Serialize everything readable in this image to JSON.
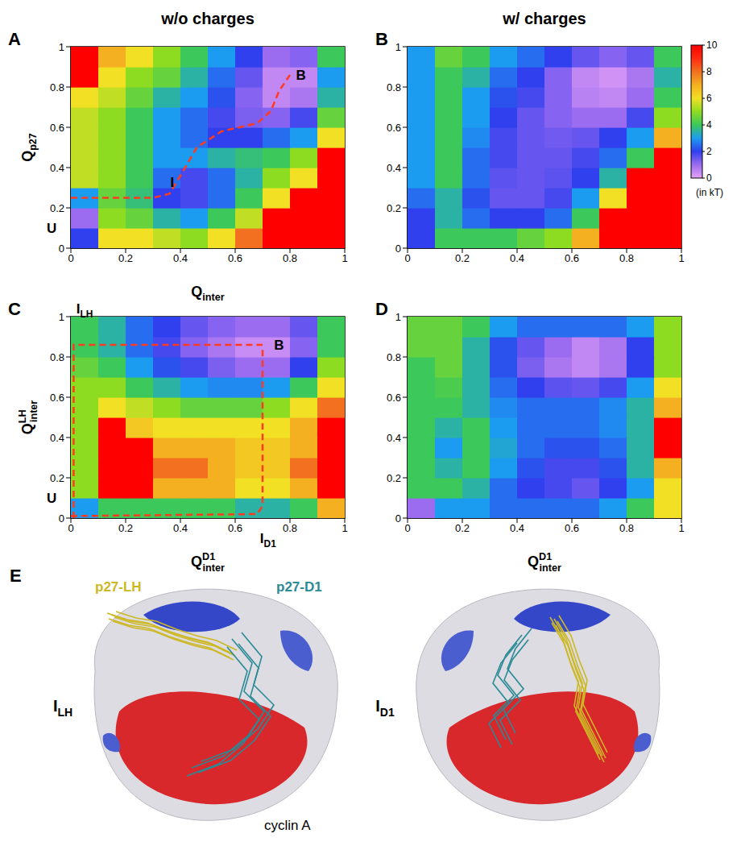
{
  "column_titles": [
    "w/o charges",
    "w/ charges"
  ],
  "colorbar": {
    "range": [
      0,
      10
    ],
    "ticks": [
      0,
      2,
      4,
      6,
      8,
      10
    ],
    "label": "(in kT)",
    "colors": [
      "#e6a3f7",
      "#9b6cf0",
      "#3040ee",
      "#1c9cf0",
      "#3cc85a",
      "#8edc22",
      "#f2e024",
      "#f4b020",
      "#f27020",
      "#ff2c10",
      "#ff0000"
    ]
  },
  "chart_data": [
    {
      "type": "heatmap",
      "title": "A",
      "ylabel": {
        "text": "Q",
        "sub": "p27"
      },
      "xlabel": {
        "text": "Q",
        "sub": "inter"
      },
      "xlim": [
        0,
        1
      ],
      "ylim": [
        0,
        1
      ],
      "xticks": [
        0,
        0.2,
        0.4,
        0.6,
        0.8,
        1
      ],
      "yticks": [
        0,
        0.2,
        0.4,
        0.6,
        0.8,
        1
      ],
      "x": [
        0.05,
        0.15,
        0.25,
        0.35,
        0.45,
        0.55,
        0.65,
        0.75,
        0.85,
        0.95
      ],
      "y": [
        0.05,
        0.15,
        0.25,
        0.35,
        0.45,
        0.55,
        0.65,
        0.75,
        0.85,
        0.95
      ],
      "z": [
        [
          2,
          6,
          6,
          5.5,
          5,
          6,
          8,
          10,
          10,
          10
        ],
        [
          1,
          5,
          4.5,
          3.5,
          3,
          4,
          5.5,
          10,
          10,
          10
        ],
        [
          3,
          4.5,
          3.8,
          2,
          1.8,
          2.5,
          4,
          6,
          10,
          10
        ],
        [
          5.5,
          5,
          4,
          2.5,
          1.8,
          2.5,
          3.5,
          5,
          6,
          10
        ],
        [
          5.5,
          5,
          4,
          3,
          3,
          3.5,
          3.8,
          4,
          5,
          10
        ],
        [
          5.5,
          5,
          4,
          3,
          2.5,
          2,
          2,
          2.5,
          3,
          6
        ],
        [
          5.5,
          5,
          4,
          3,
          2.5,
          1.8,
          1.3,
          1.2,
          1.8,
          4.5
        ],
        [
          6,
          5.5,
          4.5,
          3.5,
          3,
          2.2,
          1.2,
          0.5,
          0.8,
          3.5
        ],
        [
          10,
          6,
          5,
          4.5,
          3.5,
          2.5,
          1.5,
          0.5,
          0.5,
          3
        ],
        [
          10,
          7,
          6,
          5,
          4,
          3,
          2,
          1,
          1.2,
          4
        ]
      ],
      "series": [
        {
          "type": "line",
          "color": "#ff3b1f",
          "line_style": "dashed",
          "x": [
            0,
            0.3,
            0.36,
            0.4,
            0.46,
            0.55,
            0.68,
            0.73,
            0.76,
            0.8
          ],
          "y": [
            0.25,
            0.25,
            0.27,
            0.36,
            0.5,
            0.58,
            0.62,
            0.68,
            0.78,
            0.86
          ]
        }
      ],
      "annotations": [
        {
          "text": "U",
          "x": -0.07,
          "y": 0.1
        },
        {
          "text": "I",
          "x": 0.37,
          "y": 0.33
        },
        {
          "text": "B",
          "x": 0.84,
          "y": 0.86
        }
      ]
    },
    {
      "type": "heatmap",
      "title": "B",
      "xlim": [
        0,
        1
      ],
      "ylim": [
        0,
        1
      ],
      "xticks": [
        0,
        0.2,
        0.4,
        0.6,
        0.8,
        1
      ],
      "yticks": [
        0,
        0.2,
        0.4,
        0.6,
        0.8,
        1
      ],
      "x": [
        0.05,
        0.15,
        0.25,
        0.35,
        0.45,
        0.55,
        0.65,
        0.75,
        0.85,
        0.95
      ],
      "y": [
        0.05,
        0.15,
        0.25,
        0.35,
        0.45,
        0.55,
        0.65,
        0.75,
        0.85,
        0.95
      ],
      "z": [
        [
          2,
          4,
          4,
          4,
          4.5,
          5,
          7,
          10,
          10,
          10
        ],
        [
          2,
          3.5,
          2.5,
          2,
          2,
          2.5,
          4,
          10,
          10,
          10
        ],
        [
          2.5,
          3.5,
          2.2,
          1.5,
          1.5,
          1.8,
          3,
          6,
          10,
          10
        ],
        [
          3,
          4,
          2.5,
          1.6,
          1.5,
          1.6,
          2,
          3.5,
          10,
          10
        ],
        [
          3,
          4,
          2.5,
          1.8,
          1.5,
          1.5,
          1.8,
          2.5,
          4,
          10
        ],
        [
          3,
          4,
          2.8,
          1.8,
          1.5,
          1.4,
          1.5,
          2,
          3,
          7
        ],
        [
          3,
          4,
          3,
          2,
          1.5,
          1.2,
          1,
          1,
          1.8,
          5
        ],
        [
          3,
          4,
          3,
          2.2,
          1.8,
          1.2,
          0.6,
          0.5,
          1,
          4
        ],
        [
          3,
          4,
          3.5,
          2.5,
          2,
          1.2,
          0.5,
          0.3,
          0.8,
          3.5
        ],
        [
          3,
          4.5,
          4,
          3,
          2.5,
          2,
          1.5,
          1.2,
          1.5,
          4
        ]
      ]
    },
    {
      "type": "heatmap",
      "title": "C",
      "ylabel": {
        "text": "Q",
        "sup": "LH",
        "sub": "inter"
      },
      "xlabel": {
        "text": "Q",
        "sup": "D1",
        "sub": "inter"
      },
      "xlim": [
        0,
        1
      ],
      "ylim": [
        0,
        1
      ],
      "xticks": [
        0,
        0.2,
        0.4,
        0.6,
        0.8,
        1
      ],
      "yticks": [
        0,
        0.2,
        0.4,
        0.6,
        0.8,
        1
      ],
      "x": [
        0.05,
        0.15,
        0.25,
        0.35,
        0.45,
        0.55,
        0.65,
        0.75,
        0.85,
        0.95
      ],
      "y": [
        0.05,
        0.15,
        0.25,
        0.35,
        0.45,
        0.55,
        0.65,
        0.75,
        0.85,
        0.95
      ],
      "z": [
        [
          3,
          4,
          4,
          4,
          4,
          4,
          3.5,
          3.5,
          4,
          7
        ],
        [
          5,
          10,
          10,
          7,
          7,
          7,
          6,
          6,
          7,
          10
        ],
        [
          5,
          10,
          10,
          8,
          8,
          7,
          6.5,
          6.5,
          8,
          10
        ],
        [
          5,
          10,
          10,
          7,
          7,
          7,
          6.5,
          6.5,
          7,
          10
        ],
        [
          5,
          10,
          6.5,
          6,
          6,
          6,
          6,
          6,
          7,
          10
        ],
        [
          5,
          6,
          5.5,
          5,
          4.5,
          4.5,
          4.5,
          5,
          6,
          8
        ],
        [
          5,
          5,
          4,
          3.5,
          3,
          2.8,
          2.8,
          3,
          4,
          6
        ],
        [
          4.5,
          4,
          3,
          2.2,
          1.8,
          1.3,
          1,
          1,
          2,
          5
        ],
        [
          4,
          3.5,
          2.5,
          1.8,
          1.2,
          0.8,
          0.4,
          0.4,
          1.2,
          4
        ],
        [
          4,
          3.5,
          2.5,
          2,
          1.5,
          1.2,
          1,
          1,
          1.5,
          4
        ]
      ],
      "series": [
        {
          "type": "line",
          "color": "#ff3b1f",
          "line_style": "dashed",
          "x": [
            0.01,
            0.01,
            0.1,
            0.7
          ],
          "y": [
            0,
            0.86,
            0.86,
            0.86
          ]
        },
        {
          "type": "line",
          "color": "#ff3b1f",
          "line_style": "dashed",
          "x": [
            0,
            0.68,
            0.7,
            0.7
          ],
          "y": [
            0.01,
            0.02,
            0.06,
            0.84
          ]
        }
      ],
      "annotations": [
        {
          "text": "I",
          "sub": "LH",
          "x": 0.05,
          "y": 1.04
        },
        {
          "text": "U",
          "x": -0.07,
          "y": 0.1
        },
        {
          "text": "I",
          "sub": "D1",
          "x": 0.72,
          "y": -0.1
        },
        {
          "text": "B",
          "x": 0.76,
          "y": 0.86
        }
      ]
    },
    {
      "type": "heatmap",
      "title": "D",
      "xlabel": {
        "text": "Q",
        "sup": "D1",
        "sub": "inter"
      },
      "xlim": [
        0,
        1
      ],
      "ylim": [
        0,
        1
      ],
      "xticks": [
        0,
        0.2,
        0.4,
        0.6,
        0.8,
        1
      ],
      "yticks": [
        0,
        0.2,
        0.4,
        0.6,
        0.8,
        1
      ],
      "x": [
        0.05,
        0.15,
        0.25,
        0.35,
        0.45,
        0.55,
        0.65,
        0.75,
        0.85,
        0.95
      ],
      "y": [
        0.05,
        0.15,
        0.25,
        0.35,
        0.45,
        0.55,
        0.65,
        0.75,
        0.85,
        0.95
      ],
      "z": [
        [
          1,
          3,
          3,
          2.5,
          2.5,
          2.5,
          2.5,
          3,
          4,
          6
        ],
        [
          4,
          4,
          3.5,
          2.5,
          2,
          1.8,
          1.5,
          2,
          3,
          6
        ],
        [
          4,
          3.5,
          4,
          3,
          2.2,
          1.8,
          1.8,
          2.2,
          3.5,
          7
        ],
        [
          4,
          3,
          4,
          3.2,
          2.5,
          2.2,
          2.2,
          2.5,
          3.5,
          10
        ],
        [
          4,
          3.5,
          4,
          3,
          2.5,
          2.5,
          2.5,
          2.8,
          3.5,
          10
        ],
        [
          4,
          4,
          3.5,
          2.8,
          2.5,
          2.5,
          2.5,
          2.8,
          3.5,
          7
        ],
        [
          4,
          4.2,
          3.5,
          2.5,
          2,
          1.6,
          1.5,
          1.8,
          3,
          6
        ],
        [
          4,
          4.5,
          3.5,
          2.2,
          1.3,
          0.8,
          0.5,
          0.8,
          2,
          5
        ],
        [
          4.5,
          4.5,
          3.5,
          2.2,
          1.5,
          1,
          0.5,
          0.8,
          2,
          5
        ],
        [
          4.5,
          4.5,
          4,
          3,
          2.5,
          2.5,
          2.5,
          2.5,
          3,
          5
        ]
      ]
    }
  ],
  "panel_e": {
    "title": "E",
    "chain_labels": [
      {
        "text": "p27-LH",
        "color": "#cdb824"
      },
      {
        "text": "p27-D1",
        "color": "#2a8a96"
      }
    ],
    "protein_label": "cyclin A",
    "states": [
      {
        "text": "I",
        "sub": "LH"
      },
      {
        "text": "I",
        "sub": "D1"
      }
    ]
  }
}
